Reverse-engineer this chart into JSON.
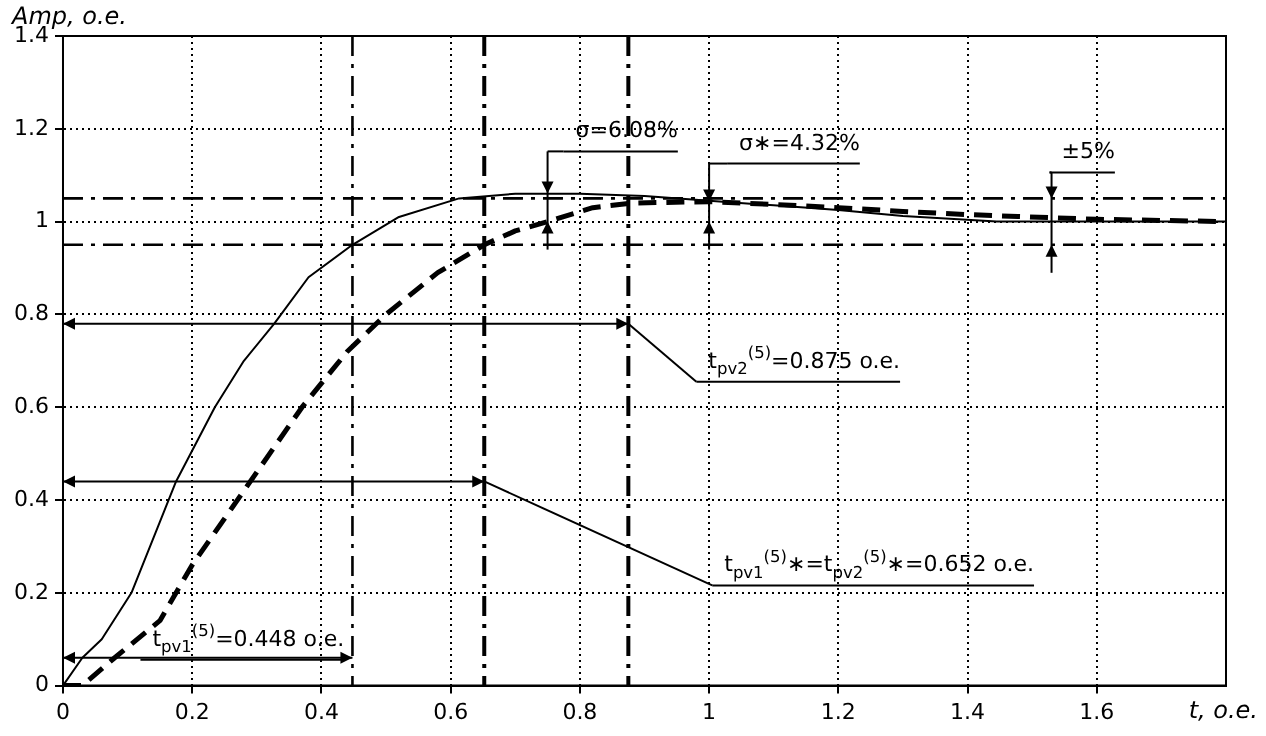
{
  "chart_data": {
    "type": "line",
    "xlabel": "t, o.e.",
    "ylabel": "Amp, o.e.",
    "xlim": [
      0,
      1.8
    ],
    "xticks": [
      0,
      0.2,
      0.4,
      0.6,
      0.8,
      1,
      1.2,
      1.4,
      1.6
    ],
    "ylim": [
      0,
      1.4
    ],
    "yticks": [
      0,
      0.2,
      0.4,
      0.6,
      0.8,
      1,
      1.2,
      1.4
    ],
    "grid": true,
    "legend": false,
    "marker": "none",
    "series": [
      {
        "color": "#000000",
        "line_style": "solid",
        "x": [
          0,
          0.03,
          0.06,
          0.106,
          0.175,
          0.235,
          0.28,
          0.327,
          0.38,
          0.448,
          0.52,
          0.613,
          0.7,
          0.8,
          0.9,
          1,
          1.1,
          1.2,
          1.3,
          1.445,
          1.6,
          1.8
        ],
        "values": [
          0,
          0.06,
          0.1,
          0.2,
          0.44,
          0.6,
          0.7,
          0.78,
          0.88,
          0.95,
          1.01,
          1.05,
          1.06,
          1.06,
          1.055,
          1.045,
          1.035,
          1.025,
          1.012,
          1,
          1,
          1
        ]
      },
      {
        "color": "#000000",
        "line_style": "dashed",
        "x": [
          0,
          0.03,
          0.08,
          0.15,
          0.2,
          0.25,
          0.29,
          0.37,
          0.44,
          0.5,
          0.58,
          0.652,
          0.7,
          0.75,
          0.82,
          0.88,
          1,
          1.1,
          1.2,
          1.3,
          1.4,
          1.6,
          1.8
        ],
        "values": [
          0,
          0,
          0.06,
          0.14,
          0.26,
          0.36,
          0.44,
          0.6,
          0.72,
          0.8,
          0.89,
          0.95,
          0.98,
          1,
          1.03,
          1.04,
          1.043,
          1.037,
          1.03,
          1.022,
          1.015,
          1.005,
          1
        ]
      }
    ],
    "ref_lines": [
      {
        "axis": "y",
        "value": 1.05,
        "line_style": "dashdot"
      },
      {
        "axis": "y",
        "value": 0.95,
        "line_style": "dashdot"
      },
      {
        "axis": "x",
        "value": 0.448,
        "line_style": "dashdot"
      },
      {
        "axis": "x",
        "value": 0.652,
        "line_style": "dashdot"
      },
      {
        "axis": "x",
        "value": 0.875,
        "line_style": "dashdot"
      }
    ],
    "annotations": [
      {
        "text": "t$_{pv1}$$^{(5)}$=0.448 o.e.",
        "x": 0.448,
        "y": 0.06
      },
      {
        "text": "t$_{pv1}$$^{(5)}$∗=t$_{pv2}$$^{(5)}$∗=0.652 o.e.",
        "x": 0.652,
        "y": 0.44
      },
      {
        "text": "t$_{pv2}$$^{(5)}$=0.875 o.e.",
        "x": 0.875,
        "y": 0.78
      },
      {
        "text": "σ=6.08%",
        "x": 0.75,
        "y": 1.0608
      },
      {
        "text": "σ∗=4.32%",
        "x": 1,
        "y": 1.0432
      },
      {
        "text": "±5%",
        "x": 1.53,
        "y": 1.05
      }
    ]
  }
}
